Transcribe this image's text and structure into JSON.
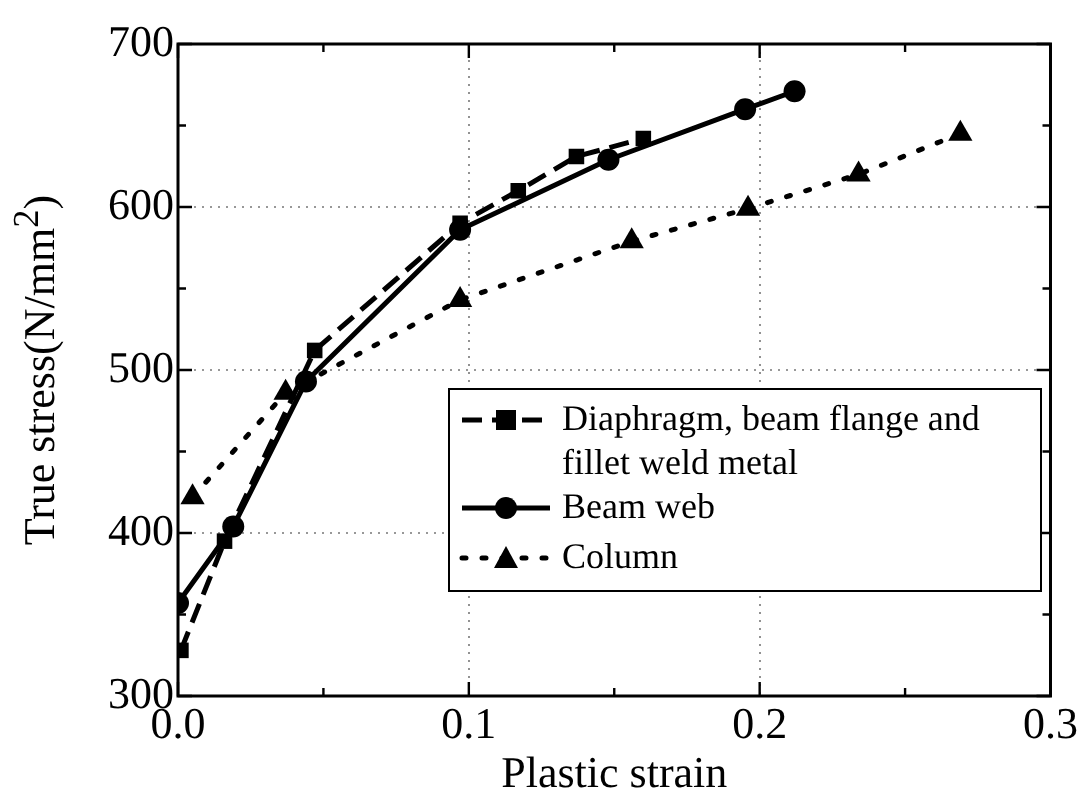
{
  "chart_data": {
    "type": "line",
    "xlabel": "Plastic strain",
    "ylabel": "True stress(N/mm$^{2}$)",
    "xlim": [
      0,
      0.3
    ],
    "xticks": [
      {
        "value": 0,
        "label": "0.0"
      },
      0.1,
      0.2,
      0.3
    ],
    "ylim": [
      300,
      700
    ],
    "yticks": [
      300,
      400,
      500,
      600,
      700
    ],
    "grid": true,
    "legend": "bottom right",
    "series": [
      {
        "name": "Diaphragm, beam flange and fillet weld metal",
        "color": "#000000",
        "marker": "square",
        "line_style": "dashed",
        "x": [
          0.001,
          0.016,
          0.047,
          0.097,
          0.117,
          0.137,
          0.16
        ],
        "values": [
          328,
          395,
          512,
          590,
          610,
          631,
          642
        ]
      },
      {
        "name": "Beam web",
        "color": "#000000",
        "marker": "circle",
        "line_style": "solid",
        "x": [
          0.0,
          0.019,
          0.044,
          0.097,
          0.148,
          0.195,
          0.212
        ],
        "values": [
          357,
          404,
          493,
          586,
          629,
          660,
          671
        ]
      },
      {
        "name": "Column",
        "color": "#000000",
        "marker": "triangle",
        "line_style": "dotted",
        "x": [
          0.005,
          0.037,
          0.097,
          0.156,
          0.196,
          0.234,
          0.269
        ],
        "values": [
          422,
          486,
          543,
          579,
          599,
          620,
          645
        ]
      }
    ]
  }
}
